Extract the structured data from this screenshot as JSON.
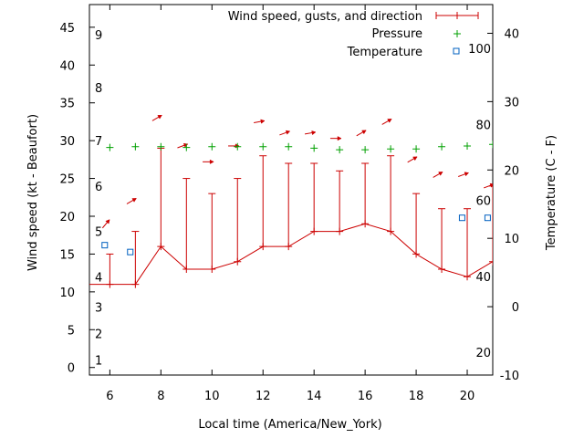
{
  "chart_data": {
    "type": "line",
    "xlabel": "Local time (America/New_York)",
    "ylabel_left": "Wind speed (kt - Beaufort)",
    "ylabel_right": "Temperature (C - F)",
    "xlim": [
      5.2,
      21.0
    ],
    "x_ticks": [
      "6",
      "8",
      "10",
      "12",
      "14",
      "16",
      "18",
      "20"
    ],
    "ylim_left": [
      -1,
      48
    ],
    "y_ticks_left": [
      "0",
      "5",
      "10",
      "15",
      "20",
      "25",
      "30",
      "35",
      "40",
      "45"
    ],
    "ylim_right": [
      -10,
      44.2
    ],
    "y_ticks_right": [
      "-10",
      "0",
      "10",
      "20",
      "30",
      "40"
    ],
    "fahrenheit_labels": [
      {
        "label": "20",
        "f": 20
      },
      {
        "label": "40",
        "f": 40
      },
      {
        "label": "60",
        "f": 60
      },
      {
        "label": "80",
        "f": 80
      },
      {
        "label": "100",
        "f": 100
      }
    ],
    "beaufort_labels": [
      {
        "label": "1",
        "kt": 1
      },
      {
        "label": "2",
        "kt": 4.5
      },
      {
        "label": "3",
        "kt": 8
      },
      {
        "label": "4",
        "kt": 12
      },
      {
        "label": "5",
        "kt": 18
      },
      {
        "label": "6",
        "kt": 24
      },
      {
        "label": "7",
        "kt": 30
      },
      {
        "label": "8",
        "kt": 37
      },
      {
        "label": "9",
        "kt": 44
      }
    ],
    "legend": [
      "Wind speed, gusts, and direction",
      "Pressure",
      "Temperature"
    ],
    "legend_position": "top-right",
    "colors": {
      "wind": "#cc0000",
      "pressure": "#00a000",
      "temperature": "#0060c0"
    },
    "wind": {
      "x": [
        5,
        6,
        7,
        8,
        9,
        10,
        11,
        12,
        13,
        14,
        15,
        16,
        17,
        18,
        19,
        20,
        21
      ],
      "speed": [
        11,
        11,
        11,
        16,
        13,
        13,
        14,
        16,
        16,
        18,
        18,
        19,
        18,
        15,
        13,
        12,
        14
      ],
      "gust": [
        15,
        15,
        18,
        29,
        25,
        23,
        25,
        28,
        27,
        27,
        26,
        27,
        28,
        23,
        21,
        21,
        24
      ],
      "direction_deg": [
        220,
        240,
        240,
        250,
        270,
        270,
        260,
        250,
        260,
        270,
        240,
        240,
        240,
        240,
        250,
        250,
        240
      ]
    },
    "arrows": {
      "x": [
        5.85,
        6.85,
        7.85,
        8.85,
        9.85,
        10.85,
        11.85,
        12.85,
        13.85,
        14.85,
        15.85,
        16.85,
        17.85,
        18.85,
        19.85,
        20.85
      ],
      "kt": [
        19,
        22,
        33,
        29.3,
        27.2,
        29.3,
        32.5,
        31,
        31,
        30.3,
        31,
        32.5,
        27.5,
        25.5,
        25.5,
        24
      ]
    },
    "pressure": {
      "x": [
        5,
        6,
        7,
        8,
        9,
        10,
        11,
        12,
        13,
        14,
        15,
        16,
        17,
        18,
        19,
        20,
        21
      ],
      "wind_axis_position": [
        29.1,
        29.1,
        29.2,
        29.2,
        29.1,
        29.2,
        29.2,
        29.2,
        29.2,
        29.0,
        28.8,
        28.8,
        28.9,
        28.9,
        29.2,
        29.3,
        29.5
      ]
    },
    "temperature": {
      "x": [
        5.8,
        6.8,
        19.8,
        20.8
      ],
      "temp_c": [
        9,
        8,
        13,
        13
      ]
    }
  }
}
